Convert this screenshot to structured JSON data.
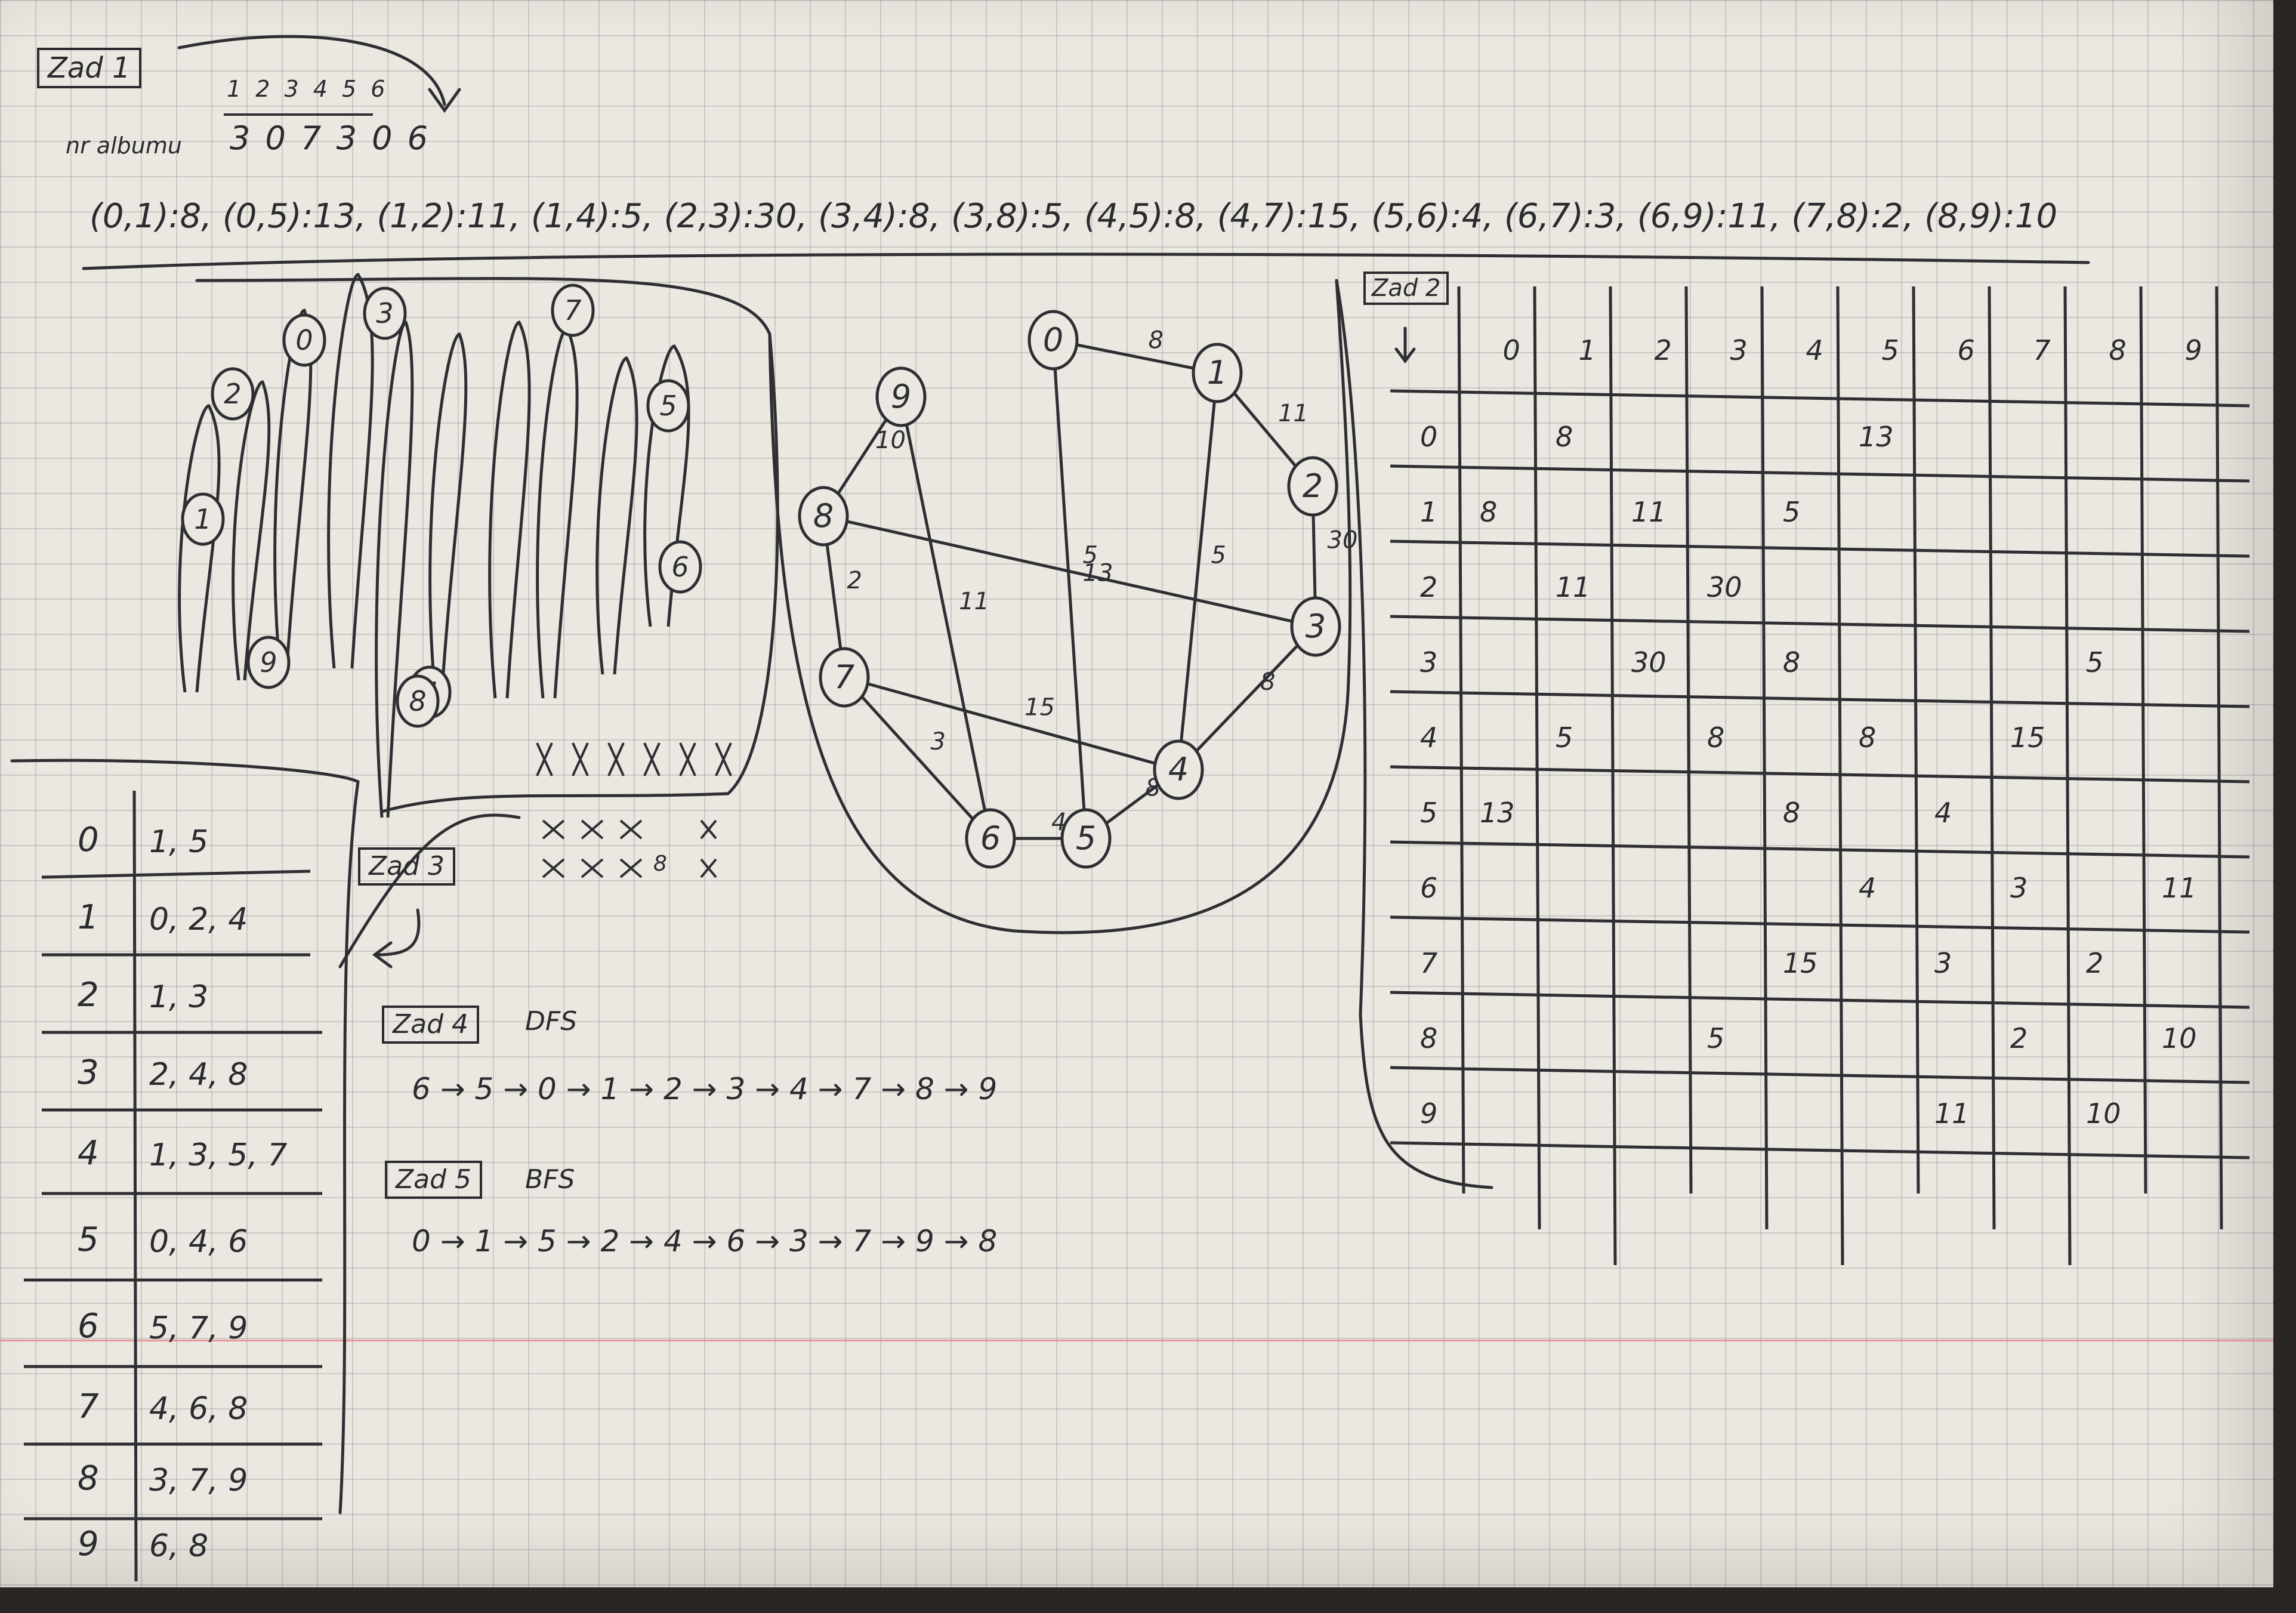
{
  "zad1": {
    "label": "Zad 1",
    "order_top": "1 2 3 4 5 6",
    "order_bottom": "3 0 7 3 0 6",
    "side_note": "nr albumu"
  },
  "edge_list": "(0,1):8, (0,5):13, (1,2):11, (1,4):5, (2,3):30, (3,4):8, (3,8):5, (4,5):8, (4,7):15, (5,6):4, (6,7):3, (6,9):11, (7,8):2, (8,9):10",
  "zad2": {
    "label": "Zad 2",
    "headers": [
      "0",
      "1",
      "2",
      "3",
      "4",
      "5",
      "6",
      "7",
      "8",
      "9"
    ],
    "rows": [
      [
        "",
        "8",
        "",
        "",
        "",
        "13",
        "",
        "",
        "",
        ""
      ],
      [
        "8",
        "",
        "11",
        "",
        "5",
        "",
        "",
        "",
        "",
        ""
      ],
      [
        "",
        "11",
        "",
        "30",
        "",
        "",
        "",
        "",
        "",
        ""
      ],
      [
        "",
        "",
        "30",
        "",
        "8",
        "",
        "",
        "",
        "5",
        ""
      ],
      [
        "",
        "5",
        "",
        "8",
        "",
        "8",
        "",
        "15",
        "",
        ""
      ],
      [
        "13",
        "",
        "",
        "",
        "8",
        "",
        "4",
        "",
        "",
        ""
      ],
      [
        "",
        "",
        "",
        "",
        "",
        "4",
        "",
        "3",
        "",
        "11"
      ],
      [
        "",
        "",
        "",
        "",
        "15",
        "",
        "3",
        "",
        "2",
        ""
      ],
      [
        "",
        "",
        "",
        "5",
        "",
        "",
        "",
        "2",
        "",
        "10"
      ],
      [
        "",
        "",
        "",
        "",
        "",
        "",
        "11",
        "",
        "10",
        ""
      ]
    ]
  },
  "zad3": {
    "label": "Zad 3"
  },
  "adjacency": {
    "rows": [
      {
        "v": "0",
        "n": "1, 5"
      },
      {
        "v": "1",
        "n": "0, 2, 4"
      },
      {
        "v": "2",
        "n": "1, 3"
      },
      {
        "v": "3",
        "n": "2, 4, 8"
      },
      {
        "v": "4",
        "n": "1, 3, 5, 7"
      },
      {
        "v": "5",
        "n": "0, 4, 6"
      },
      {
        "v": "6",
        "n": "5, 7, 9"
      },
      {
        "v": "7",
        "n": "4, 6, 8"
      },
      {
        "v": "8",
        "n": "3, 7, 9"
      },
      {
        "v": "9",
        "n": "6, 8"
      }
    ]
  },
  "zad4": {
    "label": "Zad 4",
    "method": "DFS",
    "sequence": "6 → 5 → 0 → 1 → 2 → 3 → 4 → 7 → 8 → 9"
  },
  "zad5": {
    "label": "Zad 5",
    "method": "BFS",
    "sequence": "0 → 1 → 5 → 2 → 4 → 6 → 3 → 7 → 9 → 8"
  },
  "graph": {
    "nodes": [
      "0",
      "1",
      "2",
      "3",
      "4",
      "5",
      "6",
      "7",
      "8",
      "9"
    ],
    "edges": [
      {
        "a": "0",
        "b": "1",
        "w": "8"
      },
      {
        "a": "0",
        "b": "5",
        "w": "13"
      },
      {
        "a": "1",
        "b": "2",
        "w": "11"
      },
      {
        "a": "1",
        "b": "4",
        "w": "5"
      },
      {
        "a": "2",
        "b": "3",
        "w": "30"
      },
      {
        "a": "3",
        "b": "4",
        "w": "8"
      },
      {
        "a": "3",
        "b": "8",
        "w": "5"
      },
      {
        "a": "4",
        "b": "5",
        "w": "8"
      },
      {
        "a": "4",
        "b": "7",
        "w": "15"
      },
      {
        "a": "5",
        "b": "6",
        "w": "4"
      },
      {
        "a": "6",
        "b": "7",
        "w": "3"
      },
      {
        "a": "6",
        "b": "9",
        "w": "11"
      },
      {
        "a": "7",
        "b": "8",
        "w": "2"
      },
      {
        "a": "8",
        "b": "9",
        "w": "10"
      }
    ]
  },
  "sketch_nodes": [
    "2",
    "0",
    "3",
    "4",
    "5",
    "1",
    "6",
    "9",
    "8",
    "7"
  ],
  "scratch_marks": "x x x 8 x"
}
